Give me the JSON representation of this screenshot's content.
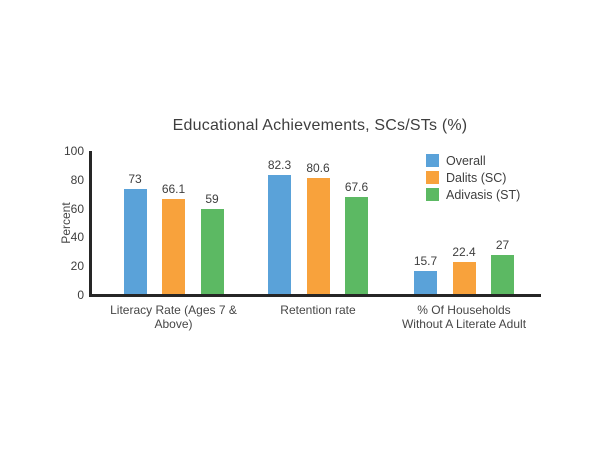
{
  "chart_data": {
    "type": "bar",
    "title": "Educational Achievements, SCs/STs (%)",
    "categories": [
      "Literacy Rate (Ages 7 &\nAbove)",
      "Retention rate",
      "% Of Households\nWithout A Literate Adult"
    ],
    "series": [
      {
        "name": "Overall",
        "color": "#5AA2D9",
        "values": [
          73,
          82.3,
          15.7
        ]
      },
      {
        "name": "Dalits (SC)",
        "color": "#F8A23C",
        "values": [
          66.1,
          80.6,
          22.4
        ]
      },
      {
        "name": "Adivasis (ST)",
        "color": "#5CB963",
        "values": [
          59,
          67.6,
          27
        ]
      }
    ],
    "xlabel": "",
    "ylabel": "Percent",
    "ylim": [
      0,
      100
    ],
    "yticks": [
      0,
      20,
      40,
      60,
      80,
      100
    ],
    "grid": false,
    "legend_position": "top-right",
    "value_labels": true
  },
  "colors": {
    "axis": "#262626",
    "text": "#3e3e3e",
    "background": "#ffffff"
  }
}
